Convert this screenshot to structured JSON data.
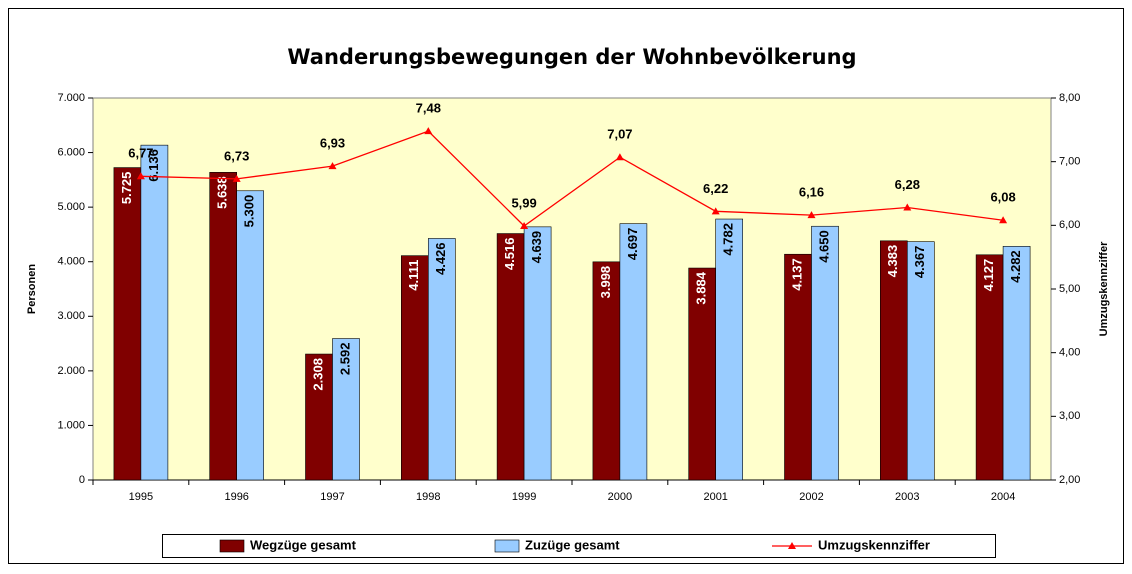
{
  "chart_data": {
    "type": "bar_line",
    "title": "Wanderungsbewegungen der Wohnbevölkerung",
    "ylabel": "Personen",
    "y2label": "Umzugskennziffer",
    "categories": [
      "1995",
      "1996",
      "1997",
      "1998",
      "1999",
      "2000",
      "2001",
      "2002",
      "2003",
      "2004"
    ],
    "series": [
      {
        "name": "Wegzüge gesamt",
        "color": "#800000",
        "type": "bar",
        "values": [
          5725,
          5638,
          2308,
          4111,
          4516,
          3998,
          3884,
          4137,
          4383,
          4127
        ],
        "value_labels": [
          "5.725",
          "5.638",
          "2.308",
          "4.111",
          "4.516",
          "3.998",
          "3.884",
          "4.137",
          "4.383",
          "4.127"
        ]
      },
      {
        "name": "Zuzüge gesamt",
        "color": "#99ccff",
        "type": "bar",
        "values": [
          6136,
          5300,
          2592,
          4426,
          4639,
          4697,
          4782,
          4650,
          4367,
          4282
        ],
        "value_labels": [
          "6.136",
          "5.300",
          "2.592",
          "4.426",
          "4.639",
          "4.697",
          "4.782",
          "4.650",
          "4.367",
          "4.282"
        ]
      },
      {
        "name": "Umzugskennziffer",
        "color": "#ff0000",
        "type": "line",
        "axis": "y2",
        "values": [
          6.77,
          6.73,
          6.93,
          7.48,
          5.99,
          7.07,
          6.22,
          6.16,
          6.28,
          6.08
        ],
        "value_labels": [
          "6,77",
          "6,73",
          "6,93",
          "7,48",
          "5,99",
          "7,07",
          "6,22",
          "6,16",
          "6,28",
          "6,08"
        ]
      }
    ],
    "ylim": [
      0,
      7000
    ],
    "yticks": [
      0,
      {
        "value": 1000,
        "label": "1.000"
      },
      {
        "value": 2000,
        "label": "2.000"
      },
      {
        "value": 3000,
        "label": "3.000"
      },
      {
        "value": 4000,
        "label": "4.000"
      },
      {
        "value": 5000,
        "label": "5.000"
      },
      {
        "value": 6000,
        "label": "6.000"
      },
      {
        "value": 7000,
        "label": "7.000"
      }
    ],
    "y2lim": [
      2,
      8
    ],
    "y2ticks": [
      {
        "value": 2,
        "label": "2,00"
      },
      {
        "value": 3,
        "label": "3,00"
      },
      {
        "value": 4,
        "label": "4,00"
      },
      {
        "value": 5,
        "label": "5,00"
      },
      {
        "value": 6,
        "label": "6,00"
      },
      {
        "value": 7,
        "label": "7,00"
      },
      {
        "value": 8,
        "label": "8,00"
      }
    ],
    "grid": false,
    "legend": "bottom",
    "plot_background": "#ffffcc"
  }
}
